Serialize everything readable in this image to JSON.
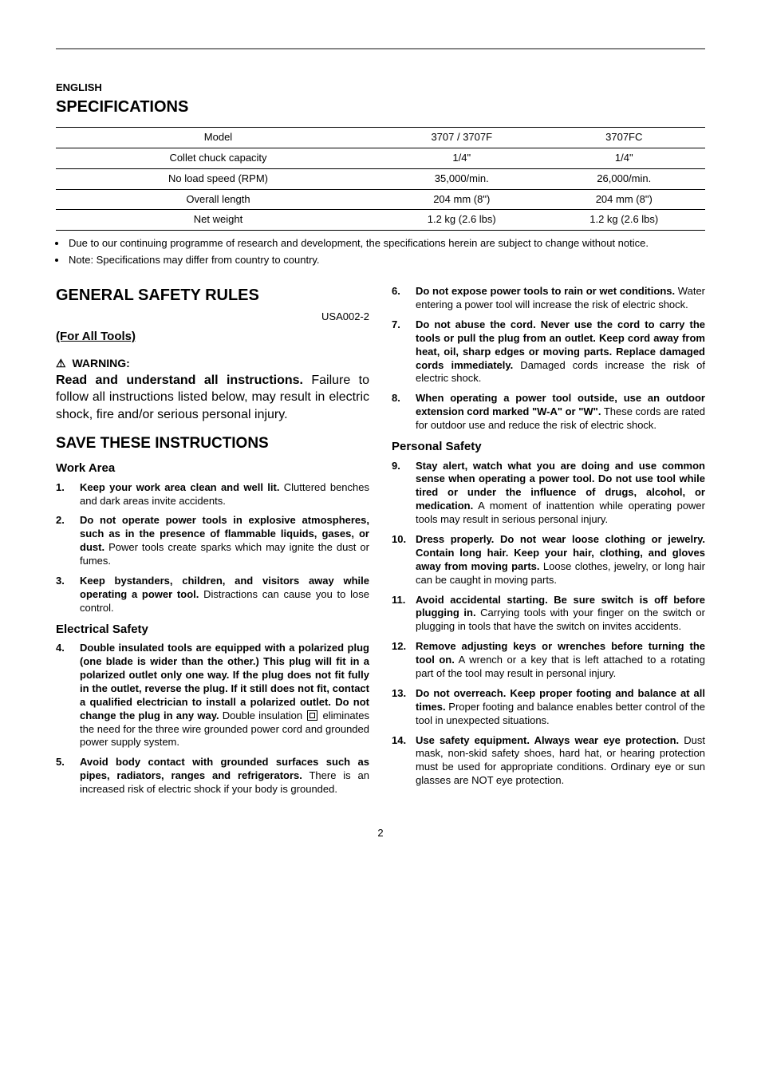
{
  "lang_label": "ENGLISH",
  "spec_title": "SPECIFICATIONS",
  "spec_table": {
    "headers": [
      "Model",
      "3707 / 3707F",
      "3707FC"
    ],
    "rows": [
      [
        "Collet chuck capacity",
        "1/4\"",
        "1/4\""
      ],
      [
        "No load speed (RPM)",
        "35,000/min.",
        "26,000/min."
      ],
      [
        "Overall length",
        "204 mm (8\")",
        "204 mm (8\")"
      ],
      [
        "Net weight",
        "1.2 kg (2.6 lbs)",
        "1.2 kg (2.6 lbs)"
      ]
    ]
  },
  "notes": [
    "Due to our continuing programme of research and development, the specifications herein are subject to change without notice.",
    "Note: Specifications may differ from country to country."
  ],
  "general_title": "GENERAL SAFETY RULES",
  "doc_code": "USA002-2",
  "for_all_tools": "(For All Tools)",
  "warning_label": "WARNING:",
  "lead_bold": "Read and understand all instructions.",
  "lead_rest": " Failure to follow all instructions listed below, may result in electric shock, fire and/or serious personal injury.",
  "save_title": "SAVE THESE INSTRUCTIONS",
  "work_area_title": "Work Area",
  "electrical_title": "Electrical Safety",
  "personal_title": "Personal Safety",
  "rules": {
    "1": {
      "b": "Keep your work area clean and well lit.",
      "r": " Cluttered benches and dark areas invite accidents."
    },
    "2": {
      "b": "Do not operate power tools in explosive atmospheres, such as in the presence of flammable liquids, gases, or dust.",
      "r": " Power tools create sparks which may ignite the dust or fumes."
    },
    "3": {
      "b": "Keep bystanders, children, and visitors away while operating a power tool.",
      "r": " Distractions can cause you to lose control."
    },
    "4a": "Double insulated tools are equipped with a polarized plug (one blade is wider than the other.) This plug will fit in a polarized outlet only one way. If the plug does not fit fully in the outlet, reverse the plug. If it still does not fit, contact a qualified electrician to install a polarized outlet. Do not change the plug in any way.",
    "4b_pre": " Double insulation ",
    "4b_post": " eliminates the need for the three wire grounded power cord and grounded power supply system.",
    "5": {
      "b": "Avoid body contact with grounded surfaces such as pipes, radiators, ranges and refrigerators.",
      "r": " There is an increased risk of electric shock if your body is grounded."
    },
    "6": {
      "b": "Do not expose power tools to rain or wet conditions.",
      "r": " Water entering a power tool will increase the risk of electric shock."
    },
    "7": {
      "b": "Do not abuse the cord. Never use the cord to carry the tools or pull the plug from an outlet. Keep cord away from heat, oil, sharp edges or moving parts. Replace damaged cords immediately.",
      "r": " Damaged cords increase the risk of electric shock."
    },
    "8": {
      "b": "When operating a power tool outside, use an outdoor extension cord marked \"W-A\" or \"W\".",
      "r": " These cords are rated for outdoor use and reduce the risk of electric shock."
    },
    "9": {
      "b": "Stay alert, watch what you are doing and use common sense when operating a power tool. Do not use tool while tired or under the influence of drugs, alcohol, or medication.",
      "r": " A moment of inattention while operating power tools may result in serious personal injury."
    },
    "10": {
      "b": "Dress properly. Do not wear loose clothing or jewelry. Contain long hair. Keep your hair, clothing, and gloves away from moving parts.",
      "r": " Loose clothes, jewelry, or long hair can be caught in moving parts."
    },
    "11": {
      "b": "Avoid accidental starting. Be sure switch is off before plugging in.",
      "r": " Carrying tools with your finger on the switch or plugging in tools that have the switch on invites accidents."
    },
    "12": {
      "b": "Remove adjusting keys or wrenches before turning the tool on.",
      "r": " A wrench or a key that is left attached to a rotating part of the tool may result in personal injury."
    },
    "13": {
      "b": "Do not overreach. Keep proper footing and balance at all times.",
      "r": " Proper footing and balance enables better control of the tool in unexpected situations."
    },
    "14": {
      "b": "Use safety equipment. Always wear eye protection.",
      "r": " Dust mask, non-skid safety shoes, hard hat, or hearing protection must be used for appropriate conditions. Ordinary eye or sun glasses are NOT eye protection."
    }
  },
  "page_number": "2"
}
